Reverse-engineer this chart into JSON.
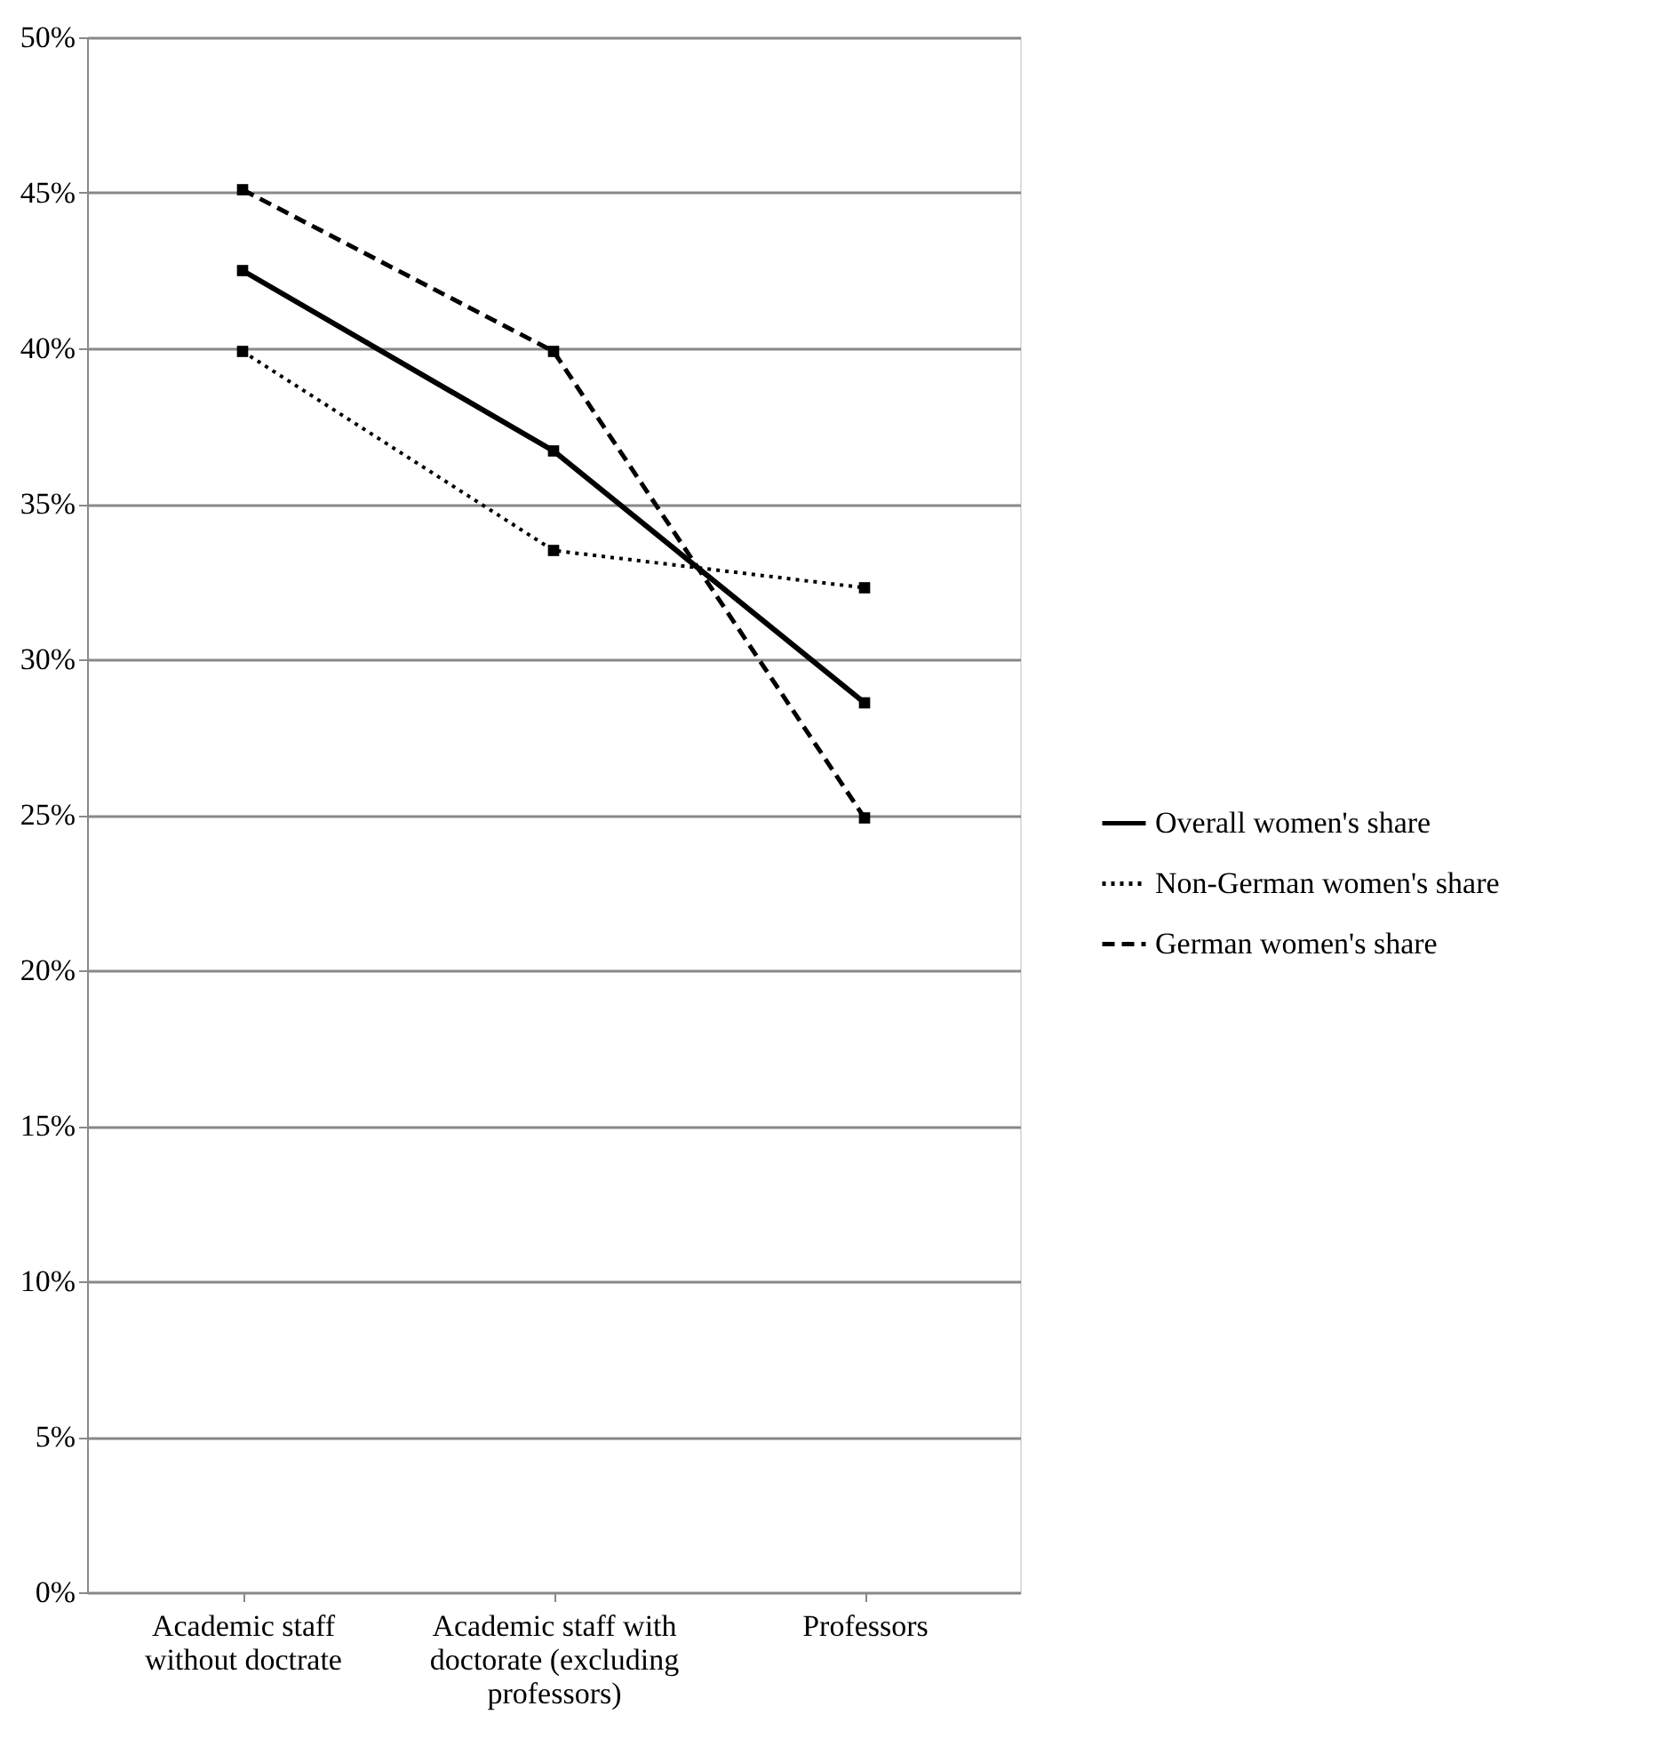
{
  "chart_data": {
    "type": "line",
    "categories": [
      "Academic staff without doctrate",
      "Academic staff with doctorate (excluding professors)",
      "Professors"
    ],
    "series": [
      {
        "name": "Overall women's share",
        "color": "#000000",
        "line_style": "solid",
        "values": [
          42.5,
          36.7,
          28.6
        ]
      },
      {
        "name": "Non-German women's share",
        "color": "#000000",
        "line_style": "dotted",
        "values": [
          39.9,
          33.5,
          32.3
        ]
      },
      {
        "name": "German women's share",
        "color": "#000000",
        "line_style": "dashed",
        "values": [
          45.1,
          39.9,
          24.9
        ]
      }
    ],
    "ylim": [
      0,
      50
    ],
    "yticks": [
      {
        "value": 0,
        "label": "0%"
      },
      {
        "value": 5,
        "label": "5%"
      },
      {
        "value": 10,
        "label": "10%"
      },
      {
        "value": 15,
        "label": "15%"
      },
      {
        "value": 20,
        "label": "20%"
      },
      {
        "value": 25,
        "label": "25%"
      },
      {
        "value": 30,
        "label": "30%"
      },
      {
        "value": 35,
        "label": "35%"
      },
      {
        "value": 40,
        "label": "40%"
      },
      {
        "value": 45,
        "label": "45%"
      },
      {
        "value": 50,
        "label": "50%"
      }
    ],
    "grid": "y",
    "legend": "right",
    "marker": "square"
  }
}
